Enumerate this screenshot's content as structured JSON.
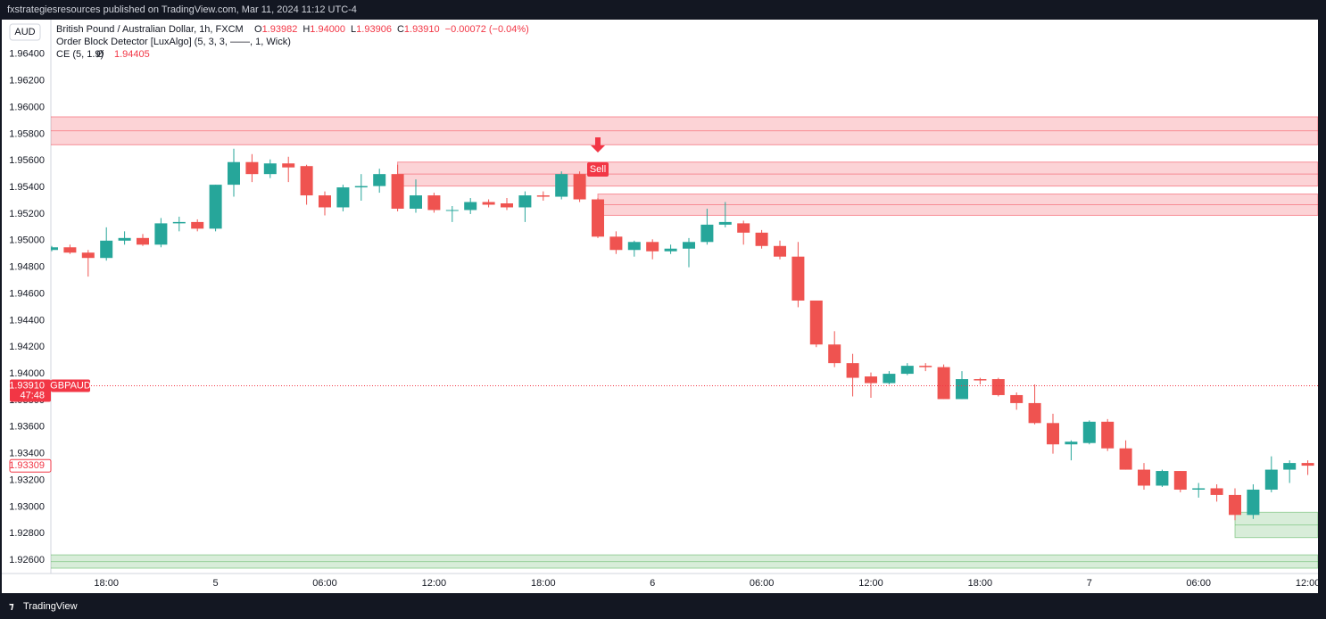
{
  "header": {
    "publisher": "fxstrategiesresources published on TradingView.com, Mar 11, 2024 11:12 UTC-4",
    "currency": "AUD",
    "ohlc": [
      {
        "key": "O",
        "value": "1.93982"
      },
      {
        "key": "H",
        "value": "1.94000"
      },
      {
        "key": "L",
        "value": "1.93906"
      },
      {
        "key": "C",
        "value": "1.93910"
      },
      {
        "key": "",
        "value": "−0.00072 (−0.04%)"
      }
    ],
    "indicators": [
      "Order Block Detector [LuxAlgo] (5, 3, 3, ——, 1, Wick)",
      "CE (5, 1.9)"
    ],
    "ce_symbol": "Ø",
    "ce_value": "1.94405",
    "brand": "TradingView"
  },
  "chart_data": {
    "type": "candlestick",
    "title": "British Pound / Australian Dollar, 1h, FXCM",
    "categories": [
      null,
      null,
      null,
      "18:00",
      null,
      null,
      null,
      null,
      null,
      "5",
      null,
      null,
      null,
      null,
      null,
      "06:00",
      null,
      null,
      null,
      null,
      null,
      "12:00",
      null,
      null,
      null,
      null,
      null,
      "18:00",
      null,
      null,
      null,
      null,
      null,
      "6",
      null,
      null,
      null,
      null,
      null,
      "06:00",
      null,
      null,
      null,
      null,
      null,
      "12:00",
      null,
      null,
      null,
      null,
      null,
      "18:00",
      null,
      null,
      null,
      null,
      null,
      "7",
      null,
      null,
      null,
      null,
      null,
      "06:00",
      null,
      null,
      null,
      null,
      null,
      "12:00"
    ],
    "open": [
      1.9493,
      1.9495,
      1.9491,
      1.9487,
      1.95,
      1.9502,
      1.9497,
      1.9513,
      1.9514,
      1.9509,
      1.9542,
      1.9559,
      1.955,
      1.9558,
      1.9556,
      1.9534,
      1.9525,
      1.954,
      1.9541,
      1.955,
      1.9524,
      1.9534,
      1.9523,
      1.9523,
      1.9529,
      1.9528,
      1.9525,
      1.9534,
      1.9533,
      1.955,
      1.9531,
      1.9503,
      1.9493,
      1.9499,
      1.9492,
      1.9494,
      1.9499,
      1.9512,
      1.9513,
      1.9506,
      1.9496,
      1.9488,
      1.9455,
      1.9422,
      1.9408,
      1.9398,
      1.9393,
      1.94,
      1.9406,
      1.9405,
      1.9381,
      1.9396,
      1.9396,
      1.9384,
      1.9378,
      1.9363,
      1.9347,
      1.9348,
      1.9364,
      1.9344,
      1.9328,
      1.9316,
      1.9327,
      1.9313,
      1.9314,
      1.9309,
      1.9294,
      1.9313,
      1.9328,
      1.9333
    ],
    "high": [
      1.9496,
      1.9497,
      1.9493,
      1.951,
      1.9507,
      1.9505,
      1.9517,
      1.9518,
      1.9516,
      1.9542,
      1.9569,
      1.9565,
      1.9561,
      1.9563,
      1.9557,
      1.9537,
      1.9542,
      1.955,
      1.9554,
      1.9557,
      1.9546,
      1.9536,
      1.9526,
      1.9532,
      1.9531,
      1.9532,
      1.9537,
      1.9537,
      1.9552,
      1.9552,
      1.9532,
      1.9507,
      1.95,
      1.9501,
      1.9497,
      1.9502,
      1.9524,
      1.9529,
      1.9515,
      1.9508,
      1.95,
      1.9499,
      1.9455,
      1.9432,
      1.9415,
      1.9401,
      1.9402,
      1.9408,
      1.9408,
      1.9407,
      1.9402,
      1.9397,
      1.9397,
      1.9386,
      1.9392,
      1.937,
      1.935,
      1.9365,
      1.9366,
      1.935,
      1.9333,
      1.9328,
      1.9327,
      1.9318,
      1.9317,
      1.9314,
      1.9317,
      1.9338,
      1.9335,
      1.9335
    ],
    "low": [
      1.9492,
      1.949,
      1.9473,
      1.9485,
      1.9497,
      1.9496,
      1.9495,
      1.9507,
      1.9507,
      1.9507,
      1.9533,
      1.9544,
      1.9547,
      1.9544,
      1.9527,
      1.9519,
      1.9522,
      1.953,
      1.9536,
      1.9522,
      1.9521,
      1.9521,
      1.9514,
      1.952,
      1.9525,
      1.9523,
      1.9514,
      1.953,
      1.9531,
      1.9529,
      1.9502,
      1.949,
      1.9488,
      1.9486,
      1.949,
      1.948,
      1.9497,
      1.951,
      1.9497,
      1.9494,
      1.9486,
      1.945,
      1.942,
      1.9405,
      1.9383,
      1.9382,
      1.9392,
      1.9399,
      1.9402,
      1.9381,
      1.9381,
      1.9392,
      1.9383,
      1.9373,
      1.9362,
      1.934,
      1.9335,
      1.9347,
      1.9342,
      1.9328,
      1.9313,
      1.9315,
      1.9311,
      1.9307,
      1.9304,
      1.929,
      1.9291,
      1.9311,
      1.9318,
      1.9324
    ],
    "close": [
      1.9495,
      1.9491,
      1.9487,
      1.95,
      1.9502,
      1.9497,
      1.9513,
      1.9514,
      1.9509,
      1.9542,
      1.9559,
      1.955,
      1.9558,
      1.9555,
      1.9534,
      1.9525,
      1.954,
      1.9541,
      1.955,
      1.9524,
      1.9534,
      1.9523,
      1.9523,
      1.9529,
      1.9527,
      1.9525,
      1.9534,
      1.9533,
      1.955,
      1.9531,
      1.9503,
      1.9493,
      1.9499,
      1.9492,
      1.9494,
      1.9499,
      1.9512,
      1.9514,
      1.9506,
      1.9496,
      1.9488,
      1.9455,
      1.9422,
      1.9408,
      1.9397,
      1.9393,
      1.94,
      1.9406,
      1.9405,
      1.9381,
      1.9396,
      1.9395,
      1.9384,
      1.9378,
      1.9363,
      1.9347,
      1.9349,
      1.9364,
      1.9344,
      1.9328,
      1.9316,
      1.9327,
      1.9313,
      1.9314,
      1.9309,
      1.9294,
      1.9313,
      1.9328,
      1.9333,
      1.9331
    ],
    "up_color": "#26a69a",
    "down_color": "#ef5350",
    "ylim": [
      1.925,
      1.9666
    ],
    "yticks": [
      {
        "value": 1.926,
        "label": "1.92600"
      },
      {
        "value": 1.928,
        "label": "1.92800"
      },
      {
        "value": 1.93,
        "label": "1.93000"
      },
      {
        "value": 1.932,
        "label": "1.93200"
      },
      {
        "value": 1.934,
        "label": "1.93400"
      },
      {
        "value": 1.936,
        "label": "1.93600"
      },
      {
        "value": 1.938,
        "label": "1.93800"
      },
      {
        "value": 1.94,
        "label": "1.94000"
      },
      {
        "value": 1.942,
        "label": "1.94200"
      },
      {
        "value": 1.944,
        "label": "1.94400"
      },
      {
        "value": 1.946,
        "label": "1.94600"
      },
      {
        "value": 1.948,
        "label": "1.94800"
      },
      {
        "value": 1.95,
        "label": "1.95000"
      },
      {
        "value": 1.952,
        "label": "1.95200"
      },
      {
        "value": 1.954,
        "label": "1.95400"
      },
      {
        "value": 1.956,
        "label": "1.95600"
      },
      {
        "value": 1.958,
        "label": "1.95800"
      },
      {
        "value": 1.96,
        "label": "1.96000"
      },
      {
        "value": 1.962,
        "label": "1.96200"
      },
      {
        "value": 1.964,
        "label": "1.96400"
      }
    ],
    "grid": false,
    "order_blocks": [
      {
        "top": 1.9593,
        "bottom": 1.9572,
        "start": 0,
        "color": "#f23645"
      },
      {
        "top": 1.9559,
        "bottom": 1.9541,
        "start": 19,
        "color": "#f23645"
      },
      {
        "top": 1.9535,
        "bottom": 1.9519,
        "start": 30,
        "color": "#f23645"
      },
      {
        "top": 1.9296,
        "bottom": 1.9277,
        "start": 65,
        "color": "#4caf50"
      },
      {
        "top": 1.9264,
        "bottom": 1.9254,
        "start": 0,
        "color": "#4caf50"
      }
    ],
    "signals": [
      {
        "index": 30,
        "label": "Sell",
        "color": "#f23645"
      }
    ],
    "last_price": {
      "value": 1.9391,
      "label": "1.93910",
      "symbol": "GBPAUD",
      "countdown": "47:48",
      "color": "#f23645"
    },
    "ce_line": {
      "value": 1.93309,
      "label": "1.93309",
      "color": "#f23645"
    }
  }
}
